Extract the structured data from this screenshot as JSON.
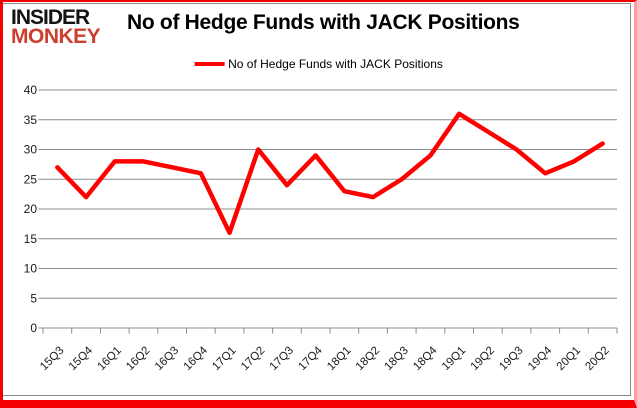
{
  "logo": {
    "line1": "INSIDER",
    "line2": "MONKEY"
  },
  "header": {
    "title": "No of Hedge Funds with JACK Positions"
  },
  "legend": {
    "label": "No of Hedge Funds with JACK Positions"
  },
  "colors": {
    "line": "#FF0000",
    "grid": "#8C8C8C",
    "axis_text": "#1A1A1A",
    "logo_red": "#CC3E2E",
    "border_red": "#F40000",
    "frame_gray": "#8A8A8A"
  },
  "chart_data": {
    "type": "line",
    "title": "No of Hedge Funds with JACK Positions",
    "categories": [
      "15Q3",
      "15Q4",
      "16Q1",
      "16Q2",
      "16Q3",
      "16Q4",
      "17Q1",
      "17Q2",
      "17Q3",
      "17Q4",
      "18Q1",
      "18Q2",
      "18Q3",
      "18Q4",
      "19Q1",
      "19Q2",
      "19Q3",
      "19Q4",
      "20Q1",
      "20Q2"
    ],
    "series": [
      {
        "name": "No of Hedge Funds with JACK Positions",
        "color": "#FF0000",
        "values": [
          27,
          22,
          28,
          28,
          27,
          26,
          16,
          30,
          24,
          29,
          23,
          22,
          25,
          29,
          36,
          33,
          30,
          26,
          28,
          31
        ]
      }
    ],
    "ylabel": "",
    "xlabel": "",
    "ylim": [
      0,
      40
    ],
    "ytick_step": 5,
    "grid": true,
    "legend_position": "top"
  }
}
